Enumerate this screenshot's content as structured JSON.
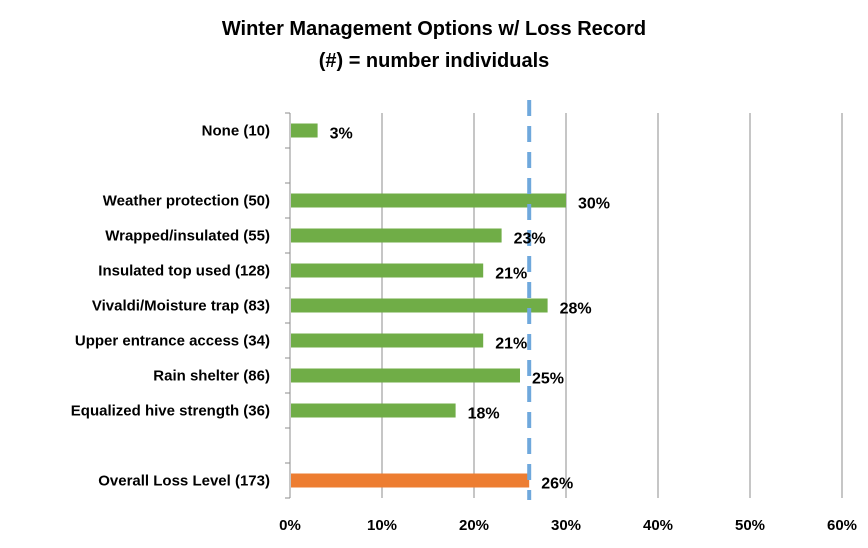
{
  "chart_data": {
    "type": "bar",
    "orientation": "horizontal",
    "title": "Winter Management Options w/ Loss Record",
    "subtitle": "(#) = number individuals",
    "categories": [
      "None (10)",
      "",
      "Weather protection (50)",
      "Wrapped/insulated (55)",
      "Insulated top used (128)",
      "Vivaldi/Moisture trap (83)",
      "Upper entrance access (34)",
      "Rain shelter (86)",
      "Equalized hive strength (36)",
      "",
      "Overall Loss Level (173)"
    ],
    "values": [
      3,
      null,
      30,
      23,
      21,
      28,
      21,
      25,
      18,
      null,
      26
    ],
    "data_labels": [
      "3%",
      "",
      "30%",
      "23%",
      "21%",
      "28%",
      "21%",
      "25%",
      "18%",
      "",
      "26%"
    ],
    "bar_colors": [
      "#70ad47",
      "",
      "#70ad47",
      "#70ad47",
      "#70ad47",
      "#70ad47",
      "#70ad47",
      "#70ad47",
      "#70ad47",
      "",
      "#ed7d31"
    ],
    "reference_line": {
      "value": 26,
      "style": "dashed",
      "color": "#6fa8dc"
    },
    "xlim": [
      0,
      60
    ],
    "x_ticks": [
      0,
      10,
      20,
      30,
      40,
      50,
      60
    ],
    "x_tick_labels": [
      "0%",
      "10%",
      "20%",
      "30%",
      "40%",
      "50%",
      "60%"
    ],
    "grid": "vertical",
    "xlabel": "",
    "ylabel": ""
  }
}
